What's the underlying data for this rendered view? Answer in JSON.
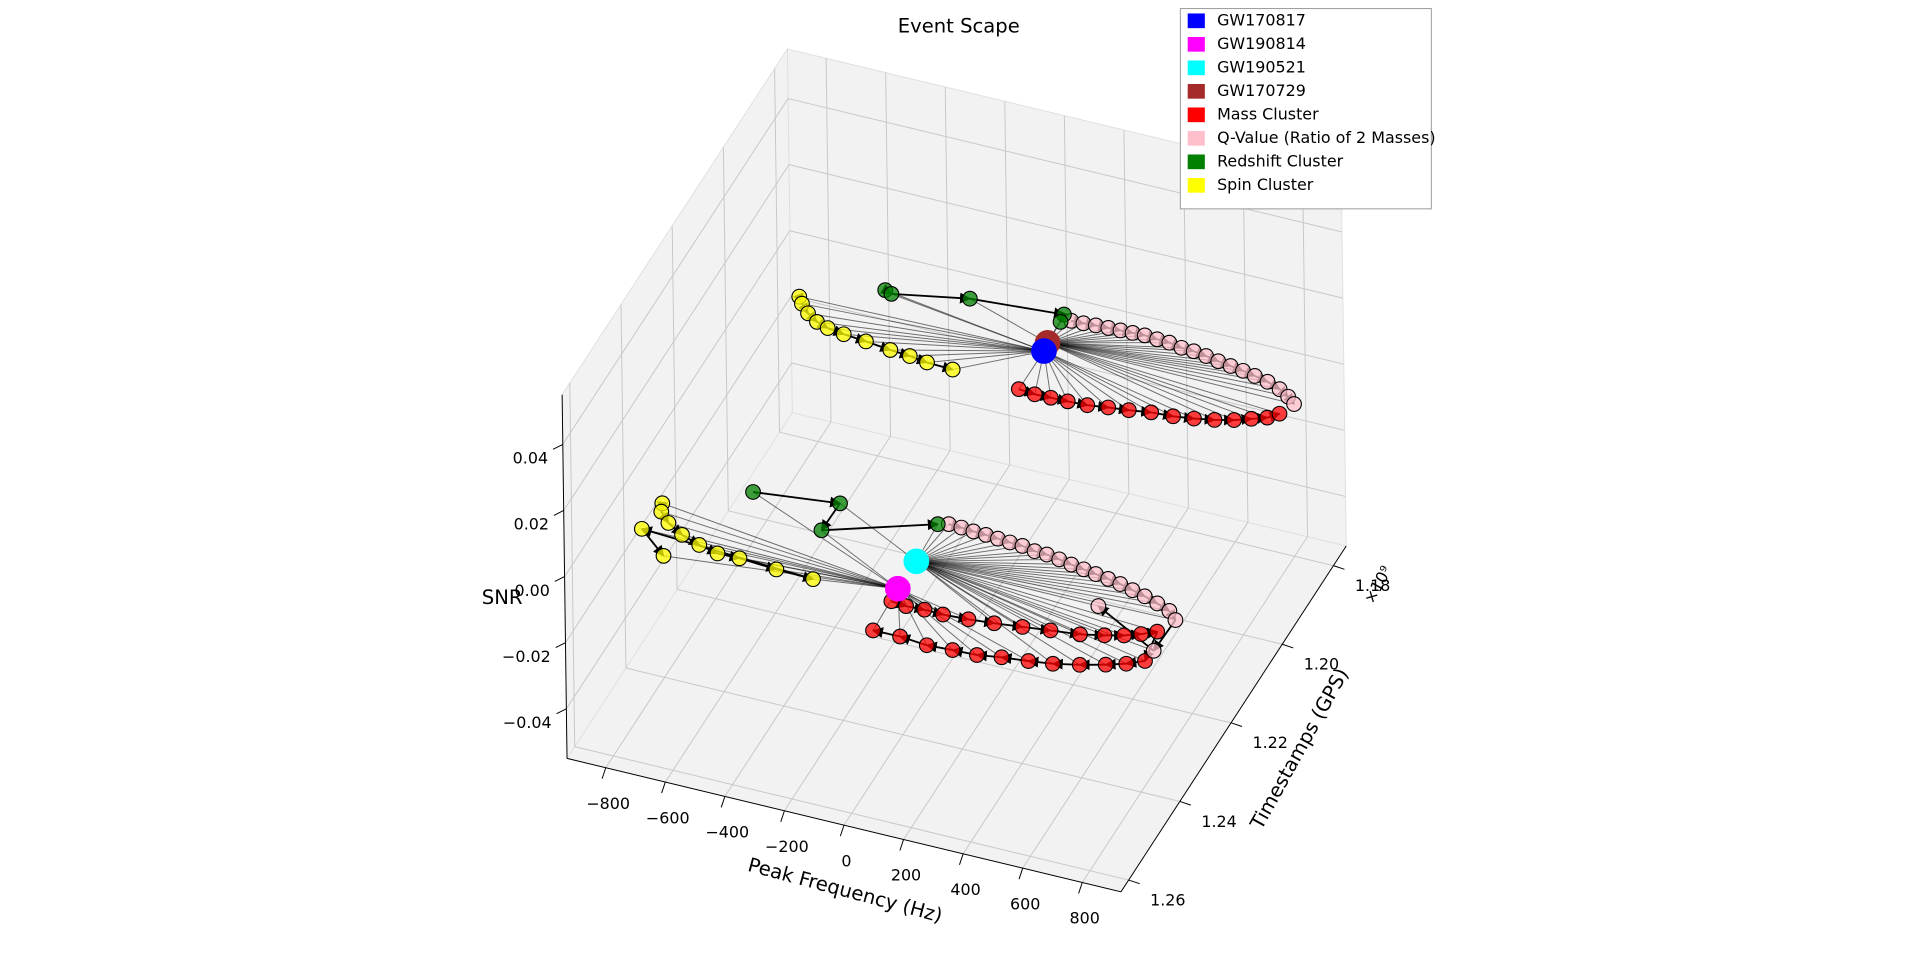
{
  "chart_data": {
    "type": "scatter3d",
    "title": "Event Scape",
    "xlabel": "Peak Frequency (Hz)",
    "ylabel": "Timestamps (GPS)",
    "zlabel": "SNR",
    "y_offset_label": "×10⁹",
    "xlim": [
      -930,
      930
    ],
    "ylim": [
      1.175,
      1.263
    ],
    "zlim": [
      -0.055,
      0.055
    ],
    "xticks": [
      {
        "value": -800,
        "label": "−800"
      },
      {
        "value": -600,
        "label": "−600"
      },
      {
        "value": -400,
        "label": "−400"
      },
      {
        "value": -200,
        "label": "−200"
      },
      0,
      200,
      400,
      600,
      800
    ],
    "yticks": [
      1.18,
      {
        "value": 1.2,
        "label": "1.20"
      },
      1.22,
      1.24,
      1.26
    ],
    "zticks": [
      {
        "value": -0.04,
        "label": "−0.04"
      },
      {
        "value": -0.02,
        "label": "−0.02"
      },
      {
        "value": 0,
        "label": "0.00"
      },
      0.02,
      0.04
    ],
    "grid": true,
    "legend": "upper right",
    "events": [
      {
        "name": "GW170817",
        "color": "#0000ff",
        "x": 35,
        "y": 1.188,
        "z": 0
      },
      {
        "name": "GW190814",
        "color": "#ff00ff",
        "x": 60,
        "y": 1.248,
        "z": 0
      },
      {
        "name": "GW190521",
        "color": "#00ffff",
        "x": 62,
        "y": 1.241,
        "z": 0
      },
      {
        "name": "GW170729",
        "color": "#a52a2a",
        "x": 30,
        "y": 1.186,
        "z": 0
      }
    ],
    "clusters": [
      {
        "name": "Mass Cluster",
        "color": "#ff0000",
        "groups": [
          {
            "x": [
              34,
              90,
              143,
              199,
              263,
              328,
              393,
              462,
              533,
              598,
              660,
              717,
              765,
              809,
              837
            ],
            "y": [
              1.1977,
              1.198,
              1.1979,
              1.1978,
              1.1976,
              1.197,
              1.1965,
              1.1958,
              1.1955,
              1.1949,
              1.1941,
              1.1931,
              1.1919,
              1.1908,
              1.1893
            ],
            "z": [
              0,
              0,
              0,
              0,
              0,
              0,
              0,
              0,
              0,
              0,
              0,
              0,
              0,
              0,
              0
            ]
          },
          {
            "x": [
              65,
              117,
              177,
              240,
              323,
              405,
              494,
              582,
              675,
              748,
              805,
              852,
              894,
              914,
              865,
              807,
              732,
              652,
              576,
              491,
              415,
              335,
              251,
              157,
              67
            ],
            "y": [
              1.2511,
              1.2514,
              1.2512,
              1.2513,
              1.251,
              1.2505,
              1.2498,
              1.2491,
              1.2484,
              1.2473,
              1.2463,
              1.2451,
              1.2437,
              1.2508,
              1.2524,
              1.2537,
              1.2551,
              1.2563,
              1.257,
              1.2576,
              1.2584,
              1.2586,
              1.2589,
              1.2584,
              1.2585
            ],
            "z": [
              0,
              0,
              0,
              0,
              0,
              0,
              0,
              0,
              0,
              0,
              0,
              0,
              0,
              0,
              0,
              0,
              0,
              0,
              0,
              0,
              0,
              0,
              0,
              0,
              0
            ]
          }
        ]
      },
      {
        "name": "Q-Value (Ratio of 2 Masses)",
        "color": "#ffc0cb",
        "groups": [
          {
            "x": [
              57,
              97,
              137,
              178,
              218,
              258,
              298,
              341,
              383,
              428,
              470,
              515,
              560,
              605,
              650,
              694,
              742,
              791,
              830,
              861
            ],
            "y": [
              1.1799,
              1.1798,
              1.1796,
              1.1795,
              1.1794,
              1.1793,
              1.1792,
              1.1794,
              1.1795,
              1.18,
              1.1801,
              1.1805,
              1.181,
              1.1814,
              1.1818,
              1.1823,
              1.1829,
              1.1839,
              1.1851,
              1.1864
            ],
            "z": [
              0,
              0,
              0,
              0,
              0,
              0,
              0,
              0,
              0,
              0,
              0,
              0,
              0,
              0,
              0,
              0,
              0,
              0,
              0,
              0
            ]
          },
          {
            "x": [
              86,
              129,
              171,
              214,
              256,
              298,
              341,
              386,
              428,
              473,
              518,
              563,
              607,
              652,
              697,
              744,
              791,
              841,
              890,
              925,
              920,
              675
            ],
            "y": [
              1.2311,
              1.2312,
              1.2314,
              1.2315,
              1.2317,
              1.2319,
              1.232,
              1.2325,
              1.2326,
              1.233,
              1.2335,
              1.2339,
              1.2343,
              1.2347,
              1.2352,
              1.2359,
              1.2366,
              1.2375,
              1.2385,
              1.2402,
              1.2481,
              1.2412
            ],
            "z": [
              0,
              0,
              0,
              0,
              0,
              0,
              0,
              0,
              0,
              0,
              0,
              0,
              0,
              0,
              0,
              0,
              0,
              0,
              0,
              0,
              0,
              0
            ]
          }
        ]
      },
      {
        "name": "Redshift Cluster",
        "color": "#008000",
        "groups": [
          {
            "x": [
              -541,
              -516,
              -279,
              24,
              28
            ],
            "y": [
              1.183,
              1.1835,
              1.1804,
              1.1789,
              1.1807
            ],
            "z": [
              0,
              0,
              0,
              0,
              0
            ]
          },
          {
            "x": [
              -543,
              -269,
              -272,
              54
            ],
            "y": [
              1.2344,
              1.2323,
              1.2392,
              1.2317
            ],
            "z": [
              0,
              0,
              0,
              0
            ]
          }
        ]
      },
      {
        "name": "Spin Cluster",
        "color": "#ffff00",
        "groups": [
          {
            "x": [
              -778,
              -757,
              -721,
              -679,
              -636,
              -578,
              -500,
              -413,
              -345,
              -283,
              -195
            ],
            "y": [
              1.189,
              1.1904,
              1.1922,
              1.1936,
              1.1944,
              1.1949,
              1.1953,
              1.1959,
              1.1962,
              1.1967,
              1.1969
            ],
            "z": [
              0,
              0,
              0,
              0,
              0,
              0,
              0,
              0,
              0,
              0,
              0
            ]
          },
          {
            "x": [
              -785,
              -772,
              -730,
              -668,
              -599,
              -530,
              -457,
              -329,
              -204,
              -796,
              -682
            ],
            "y": [
              1.2417,
              1.2436,
              1.2457,
              1.2476,
              1.2489,
              1.2498,
              1.2497,
              1.2502,
              1.2504,
              1.2484,
              1.2532
            ],
            "z": [
              0,
              0,
              0,
              0,
              0,
              0,
              0,
              0,
              0,
              0,
              0
            ]
          }
        ]
      }
    ]
  }
}
